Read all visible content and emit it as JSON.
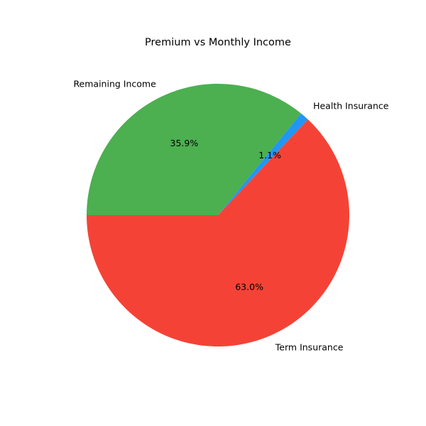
{
  "chart_data": {
    "type": "pie",
    "title": "Premium vs Monthly Income",
    "start_angle": 180,
    "direction": "counterclockwise",
    "slices": [
      {
        "name": "Term Insurance",
        "value": 63.0,
        "label": "63.0%",
        "color": "#F44336"
      },
      {
        "name": "Health Insurance",
        "value": 1.1,
        "label": "1.1%",
        "color": "#2196F3"
      },
      {
        "name": "Remaining Income",
        "value": 35.9,
        "label": "35.9%",
        "color": "#4CAF50"
      }
    ]
  }
}
